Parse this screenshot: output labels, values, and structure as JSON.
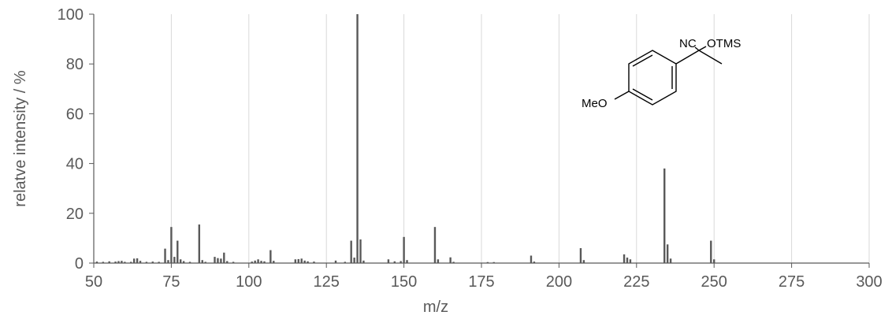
{
  "chart_data": {
    "type": "bar",
    "title": "",
    "xlabel": "m/z",
    "ylabel": "relatve intensity / %",
    "xlim": [
      50,
      300
    ],
    "ylim": [
      0,
      100
    ],
    "x_ticks": [
      "50",
      "75",
      "100",
      "125",
      "150",
      "175",
      "200",
      "225",
      "250",
      "275",
      "300"
    ],
    "y_ticks": [
      "0",
      "20",
      "40",
      "60",
      "80",
      "100"
    ],
    "grid": "vertical",
    "bar_color": "#595959",
    "grid_color": "#d9d9d9",
    "peaks": [
      {
        "mz": 51,
        "intensity": 0.6
      },
      {
        "mz": 53,
        "intensity": 0.5
      },
      {
        "mz": 55,
        "intensity": 0.7
      },
      {
        "mz": 57,
        "intensity": 0.6
      },
      {
        "mz": 58,
        "intensity": 0.8
      },
      {
        "mz": 59,
        "intensity": 0.9
      },
      {
        "mz": 60,
        "intensity": 0.5
      },
      {
        "mz": 62,
        "intensity": 0.5
      },
      {
        "mz": 63,
        "intensity": 1.8
      },
      {
        "mz": 64,
        "intensity": 1.9
      },
      {
        "mz": 65,
        "intensity": 0.9
      },
      {
        "mz": 67,
        "intensity": 0.5
      },
      {
        "mz": 69,
        "intensity": 0.6
      },
      {
        "mz": 71,
        "intensity": 0.5
      },
      {
        "mz": 73,
        "intensity": 5.8
      },
      {
        "mz": 74,
        "intensity": 1.2
      },
      {
        "mz": 75,
        "intensity": 14.5
      },
      {
        "mz": 76,
        "intensity": 2.5
      },
      {
        "mz": 77,
        "intensity": 9.0
      },
      {
        "mz": 78,
        "intensity": 1.5
      },
      {
        "mz": 79,
        "intensity": 0.8
      },
      {
        "mz": 81,
        "intensity": 0.5
      },
      {
        "mz": 84,
        "intensity": 15.5
      },
      {
        "mz": 85,
        "intensity": 1.2
      },
      {
        "mz": 86,
        "intensity": 0.5
      },
      {
        "mz": 89,
        "intensity": 2.5
      },
      {
        "mz": 90,
        "intensity": 2.0
      },
      {
        "mz": 91,
        "intensity": 1.8
      },
      {
        "mz": 92,
        "intensity": 4.2
      },
      {
        "mz": 93,
        "intensity": 0.8
      },
      {
        "mz": 95,
        "intensity": 0.5
      },
      {
        "mz": 101,
        "intensity": 0.6
      },
      {
        "mz": 102,
        "intensity": 1.0
      },
      {
        "mz": 103,
        "intensity": 1.5
      },
      {
        "mz": 104,
        "intensity": 0.9
      },
      {
        "mz": 105,
        "intensity": 0.7
      },
      {
        "mz": 107,
        "intensity": 5.2
      },
      {
        "mz": 108,
        "intensity": 0.9
      },
      {
        "mz": 115,
        "intensity": 1.5
      },
      {
        "mz": 116,
        "intensity": 1.6
      },
      {
        "mz": 117,
        "intensity": 1.8
      },
      {
        "mz": 118,
        "intensity": 1.0
      },
      {
        "mz": 119,
        "intensity": 0.7
      },
      {
        "mz": 121,
        "intensity": 0.6
      },
      {
        "mz": 128,
        "intensity": 1.0
      },
      {
        "mz": 131,
        "intensity": 0.5
      },
      {
        "mz": 133,
        "intensity": 9.0
      },
      {
        "mz": 134,
        "intensity": 2.2
      },
      {
        "mz": 135,
        "intensity": 100
      },
      {
        "mz": 136,
        "intensity": 9.5
      },
      {
        "mz": 137,
        "intensity": 1.0
      },
      {
        "mz": 145,
        "intensity": 1.5
      },
      {
        "mz": 147,
        "intensity": 0.7
      },
      {
        "mz": 149,
        "intensity": 0.8
      },
      {
        "mz": 150,
        "intensity": 10.5
      },
      {
        "mz": 151,
        "intensity": 1.2
      },
      {
        "mz": 160,
        "intensity": 14.5
      },
      {
        "mz": 161,
        "intensity": 1.5
      },
      {
        "mz": 165,
        "intensity": 2.3
      },
      {
        "mz": 166,
        "intensity": 0.5
      },
      {
        "mz": 177,
        "intensity": 0.4
      },
      {
        "mz": 179,
        "intensity": 0.4
      },
      {
        "mz": 191,
        "intensity": 3.0
      },
      {
        "mz": 192,
        "intensity": 0.6
      },
      {
        "mz": 207,
        "intensity": 6.0
      },
      {
        "mz": 208,
        "intensity": 1.2
      },
      {
        "mz": 221,
        "intensity": 3.5
      },
      {
        "mz": 222,
        "intensity": 2.2
      },
      {
        "mz": 223,
        "intensity": 1.5
      },
      {
        "mz": 234,
        "intensity": 38
      },
      {
        "mz": 235,
        "intensity": 7.5
      },
      {
        "mz": 236,
        "intensity": 1.8
      },
      {
        "mz": 249,
        "intensity": 9.0
      },
      {
        "mz": 250,
        "intensity": 1.5
      }
    ]
  },
  "structure": {
    "labels": {
      "nitrile": "NC",
      "silyl_ether": "OTMS",
      "methoxy": "MeO"
    }
  }
}
